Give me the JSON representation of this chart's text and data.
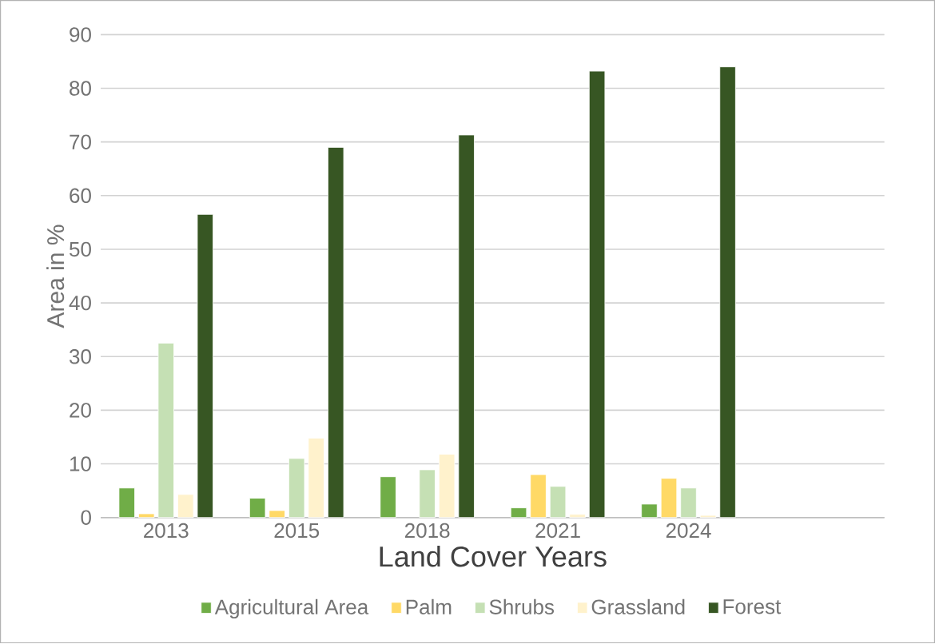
{
  "chart_data": {
    "type": "bar",
    "xlabel": "Land Cover Years",
    "ylabel": "Area in %",
    "categories": [
      "2013",
      "2015",
      "2018",
      "2021",
      "2024",
      null
    ],
    "series": [
      {
        "name": "Agricultural Area",
        "color": "#70ad47",
        "values": [
          5.5,
          3.6,
          7.6,
          1.8,
          2.5,
          null
        ]
      },
      {
        "name": "Palm",
        "color": "#ffd966",
        "values": [
          0.7,
          1.3,
          null,
          8,
          7.3,
          null
        ]
      },
      {
        "name": "Shrubs",
        "color": "#c5e0b4",
        "values": [
          32.5,
          11,
          8.9,
          5.8,
          5.5,
          null
        ]
      },
      {
        "name": "Grassland",
        "color": "#fff2cc",
        "values": [
          4.3,
          14.8,
          11.8,
          0.6,
          0.4,
          null
        ]
      },
      {
        "name": "Forest",
        "color": "#375623",
        "values": [
          56.5,
          69,
          71.3,
          83.2,
          84,
          null
        ]
      }
    ],
    "ylim": [
      0,
      90
    ],
    "yticks": [
      0,
      10,
      20,
      30,
      40,
      50,
      60,
      70,
      80,
      90
    ],
    "grid": "y",
    "legend": "bottom"
  }
}
